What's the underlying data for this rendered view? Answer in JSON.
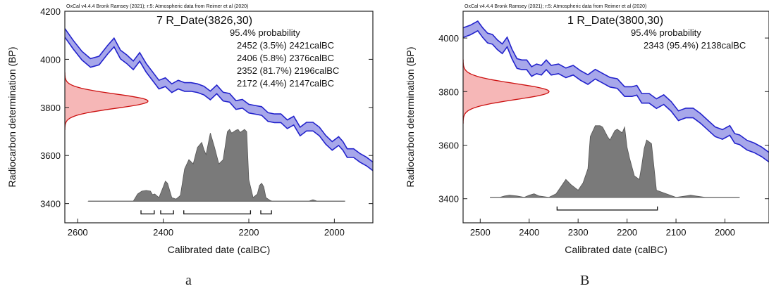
{
  "chart_data": [
    {
      "type": "area",
      "panel_label": "a",
      "header": "OxCal v4.4.4 Bronk Ramsey (2021); r:5: Atmospheric data from Reimer et al (2020)",
      "title": "7 R_Date(3826,30)",
      "probability_label": "95.4% probability",
      "ranges": [
        {
          "text": "2452 (3.5%) 2421calBC",
          "from": 2452,
          "to": 2421,
          "percent": 3.5
        },
        {
          "text": "2406 (5.8%) 2376calBC",
          "from": 2406,
          "to": 2376,
          "percent": 5.8
        },
        {
          "text": "2352 (81.7%) 2196calBC",
          "from": 2352,
          "to": 2196,
          "percent": 81.7
        },
        {
          "text": "2172 (4.4%) 2147calBC",
          "from": 2172,
          "to": 2147,
          "percent": 4.4
        }
      ],
      "xlabel": "Calibrated date (calBC)",
      "ylabel": "Radiocarbon determination (BP)",
      "xlim": [
        2630,
        1910
      ],
      "ylim": [
        3320,
        4200
      ],
      "xticks": [
        "2600",
        "2400",
        "2200",
        "2000"
      ],
      "xtick_values": [
        2600,
        2400,
        2200,
        2000
      ],
      "yticks": [
        "3400",
        "3600",
        "3800",
        "4000",
        "4200"
      ],
      "ytick_values": [
        3400,
        3600,
        3800,
        4000,
        4200
      ],
      "radiocarbon": {
        "mean": 3826,
        "sigma": 30
      },
      "calibration_curve": {
        "x": [
          2630,
          2610,
          2590,
          2570,
          2550,
          2530,
          2515,
          2500,
          2485,
          2470,
          2455,
          2440,
          2425,
          2410,
          2395,
          2380,
          2365,
          2350,
          2335,
          2320,
          2305,
          2290,
          2275,
          2260,
          2245,
          2230,
          2215,
          2200,
          2185,
          2170,
          2155,
          2140,
          2125,
          2110,
          2095,
          2080,
          2065,
          2050,
          2035,
          2020,
          2005,
          1990,
          1980,
          1970,
          1955,
          1940,
          1925,
          1910
        ],
        "y": [
          4110,
          4060,
          4015,
          3985,
          3995,
          4040,
          4070,
          4020,
          4000,
          3975,
          4010,
          3965,
          3930,
          3895,
          3905,
          3880,
          3895,
          3885,
          3885,
          3880,
          3870,
          3850,
          3875,
          3845,
          3840,
          3810,
          3815,
          3795,
          3790,
          3785,
          3760,
          3755,
          3755,
          3730,
          3745,
          3700,
          3720,
          3720,
          3700,
          3665,
          3640,
          3660,
          3640,
          3610,
          3610,
          3590,
          3575,
          3555
        ],
        "half_width": 18
      },
      "posterior": {
        "x": [
          2575,
          2470,
          2460,
          2455,
          2450,
          2440,
          2430,
          2425,
          2420,
          2410,
          2400,
          2395,
          2390,
          2380,
          2370,
          2360,
          2350,
          2340,
          2330,
          2320,
          2310,
          2305,
          2300,
          2290,
          2280,
          2270,
          2260,
          2250,
          2245,
          2240,
          2230,
          2225,
          2220,
          2210,
          2205,
          2200,
          2190,
          2180,
          2175,
          2170,
          2165,
          2160,
          2150,
          2145,
          2140,
          2060,
          2050,
          2040,
          1975
        ],
        "density": [
          0,
          0,
          0.1,
          0.12,
          0.14,
          0.15,
          0.14,
          0.09,
          0.1,
          0.05,
          0.2,
          0.28,
          0.25,
          0.05,
          0.03,
          0.08,
          0.45,
          0.58,
          0.52,
          0.75,
          0.82,
          0.72,
          0.65,
          0.95,
          0.75,
          0.52,
          0.58,
          0.97,
          1.0,
          0.95,
          0.99,
          1.0,
          0.96,
          1.0,
          0.97,
          0.3,
          0.05,
          0.1,
          0.22,
          0.25,
          0.2,
          0.05,
          0.01,
          0,
          0,
          0,
          0.02,
          0,
          0
        ]
      }
    },
    {
      "type": "area",
      "panel_label": "B",
      "header": "OxCal v4.4.4 Bronk Ramsey (2021); r:5: Atmospheric data from Reimer et al (2020)",
      "title": "1 R_Date(3800,30)",
      "probability_label": "95.4% probability",
      "ranges": [
        {
          "text": "2343 (95.4%) 2138calBC",
          "from": 2343,
          "to": 2138,
          "percent": 95.4
        }
      ],
      "xlabel": "Calibrated date (calBC)",
      "ylabel": "Radiocarbon determination (BP)",
      "xlim": [
        2535,
        1910
      ],
      "ylim": [
        3310,
        4100
      ],
      "xticks": [
        "2500",
        "2400",
        "2300",
        "2200",
        "2100",
        "2000"
      ],
      "xtick_values": [
        2500,
        2400,
        2300,
        2200,
        2100,
        2000
      ],
      "yticks": [
        "3400",
        "3600",
        "3800",
        "4000"
      ],
      "ytick_values": [
        3400,
        3600,
        3800,
        4000
      ],
      "radiocarbon": {
        "mean": 3800,
        "sigma": 30
      },
      "calibration_curve": {
        "x": [
          2535,
          2520,
          2505,
          2495,
          2485,
          2475,
          2465,
          2455,
          2445,
          2435,
          2425,
          2415,
          2405,
          2395,
          2385,
          2375,
          2365,
          2355,
          2340,
          2325,
          2310,
          2295,
          2280,
          2265,
          2250,
          2235,
          2220,
          2205,
          2190,
          2180,
          2170,
          2155,
          2140,
          2125,
          2110,
          2095,
          2080,
          2065,
          2050,
          2035,
          2020,
          2005,
          1990,
          1980,
          1970,
          1955,
          1940,
          1925,
          1910
        ],
        "y": [
          4020,
          4030,
          4045,
          4020,
          4000,
          3995,
          3975,
          3960,
          3985,
          3940,
          3905,
          3900,
          3900,
          3875,
          3885,
          3880,
          3900,
          3880,
          3885,
          3870,
          3880,
          3860,
          3845,
          3865,
          3850,
          3835,
          3830,
          3800,
          3800,
          3805,
          3775,
          3775,
          3755,
          3770,
          3745,
          3710,
          3720,
          3720,
          3700,
          3675,
          3650,
          3640,
          3655,
          3625,
          3620,
          3600,
          3590,
          3575,
          3555
        ],
        "half_width": 18
      },
      "posterior": {
        "x": [
          2480,
          2460,
          2450,
          2440,
          2425,
          2410,
          2400,
          2390,
          2380,
          2360,
          2345,
          2335,
          2325,
          2315,
          2300,
          2290,
          2280,
          2275,
          2265,
          2255,
          2250,
          2240,
          2235,
          2225,
          2220,
          2210,
          2205,
          2200,
          2195,
          2185,
          2175,
          2170,
          2165,
          2160,
          2150,
          2140,
          2100,
          2080,
          2070,
          2060,
          2040,
          1970
        ],
        "density": [
          0,
          0,
          0.02,
          0.03,
          0.02,
          0,
          0.03,
          0.05,
          0.02,
          0,
          0.05,
          0.15,
          0.25,
          0.18,
          0.1,
          0.2,
          0.4,
          0.85,
          1.0,
          1.0,
          0.98,
          0.85,
          0.8,
          0.93,
          0.95,
          0.9,
          0.98,
          0.7,
          0.55,
          0.3,
          0.25,
          0.45,
          0.68,
          0.8,
          0.75,
          0.1,
          0,
          0.02,
          0.03,
          0.02,
          0,
          0
        ]
      }
    }
  ]
}
